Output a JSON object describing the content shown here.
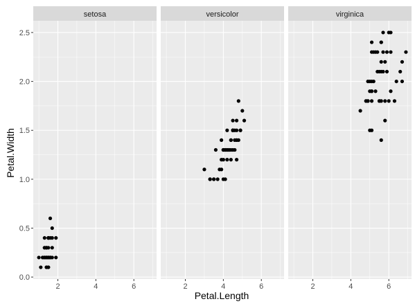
{
  "chart_data": {
    "type": "scatter",
    "facet_by": "Species",
    "xlabel": "Petal.Length",
    "ylabel": "Petal.Width",
    "xlim": [
      0.705,
      7.195
    ],
    "ylim": [
      -0.02,
      2.62
    ],
    "x_ticks": [
      2,
      4,
      6
    ],
    "y_ticks": [
      0.0,
      0.5,
      1.0,
      1.5,
      2.0,
      2.5
    ],
    "y_tick_labels": [
      "0.0",
      "0.5",
      "1.0",
      "1.5",
      "2.0",
      "2.5"
    ],
    "grid": true,
    "legend": "none",
    "colors": {
      "panel_background": "#ebebeb",
      "grid_major": "#ffffff",
      "strip_background": "#d9d9d9",
      "point": "#000000"
    },
    "panels": [
      {
        "label": "setosa",
        "points": [
          [
            1.4,
            0.2
          ],
          [
            1.4,
            0.2
          ],
          [
            1.3,
            0.2
          ],
          [
            1.5,
            0.2
          ],
          [
            1.4,
            0.2
          ],
          [
            1.7,
            0.4
          ],
          [
            1.4,
            0.3
          ],
          [
            1.5,
            0.2
          ],
          [
            1.4,
            0.2
          ],
          [
            1.5,
            0.1
          ],
          [
            1.5,
            0.2
          ],
          [
            1.6,
            0.2
          ],
          [
            1.4,
            0.1
          ],
          [
            1.1,
            0.1
          ],
          [
            1.2,
            0.2
          ],
          [
            1.5,
            0.4
          ],
          [
            1.3,
            0.4
          ],
          [
            1.4,
            0.3
          ],
          [
            1.7,
            0.3
          ],
          [
            1.5,
            0.3
          ],
          [
            1.7,
            0.2
          ],
          [
            1.5,
            0.4
          ],
          [
            1.0,
            0.2
          ],
          [
            1.7,
            0.5
          ],
          [
            1.9,
            0.2
          ],
          [
            1.6,
            0.2
          ],
          [
            1.6,
            0.4
          ],
          [
            1.5,
            0.2
          ],
          [
            1.4,
            0.2
          ],
          [
            1.6,
            0.2
          ],
          [
            1.6,
            0.2
          ],
          [
            1.5,
            0.4
          ],
          [
            1.5,
            0.1
          ],
          [
            1.4,
            0.2
          ],
          [
            1.5,
            0.2
          ],
          [
            1.2,
            0.2
          ],
          [
            1.3,
            0.2
          ],
          [
            1.4,
            0.1
          ],
          [
            1.3,
            0.2
          ],
          [
            1.5,
            0.2
          ],
          [
            1.3,
            0.3
          ],
          [
            1.3,
            0.3
          ],
          [
            1.3,
            0.2
          ],
          [
            1.6,
            0.6
          ],
          [
            1.9,
            0.4
          ],
          [
            1.4,
            0.3
          ],
          [
            1.6,
            0.2
          ],
          [
            1.4,
            0.2
          ],
          [
            1.5,
            0.2
          ],
          [
            1.4,
            0.2
          ]
        ]
      },
      {
        "label": "versicolor",
        "points": [
          [
            4.7,
            1.4
          ],
          [
            4.5,
            1.5
          ],
          [
            4.9,
            1.5
          ],
          [
            4.0,
            1.3
          ],
          [
            4.6,
            1.5
          ],
          [
            4.5,
            1.3
          ],
          [
            4.7,
            1.6
          ],
          [
            3.3,
            1.0
          ],
          [
            4.6,
            1.3
          ],
          [
            3.9,
            1.4
          ],
          [
            3.5,
            1.0
          ],
          [
            4.2,
            1.5
          ],
          [
            4.0,
            1.0
          ],
          [
            4.7,
            1.4
          ],
          [
            3.6,
            1.3
          ],
          [
            4.4,
            1.4
          ],
          [
            4.5,
            1.5
          ],
          [
            4.1,
            1.0
          ],
          [
            4.5,
            1.5
          ],
          [
            3.9,
            1.1
          ],
          [
            4.8,
            1.8
          ],
          [
            4.0,
            1.3
          ],
          [
            4.9,
            1.5
          ],
          [
            4.7,
            1.2
          ],
          [
            4.3,
            1.3
          ],
          [
            4.4,
            1.4
          ],
          [
            4.8,
            1.4
          ],
          [
            5.0,
            1.7
          ],
          [
            4.5,
            1.5
          ],
          [
            3.5,
            1.0
          ],
          [
            3.8,
            1.1
          ],
          [
            3.7,
            1.0
          ],
          [
            3.9,
            1.2
          ],
          [
            5.1,
            1.6
          ],
          [
            4.5,
            1.5
          ],
          [
            4.5,
            1.6
          ],
          [
            4.7,
            1.5
          ],
          [
            4.4,
            1.3
          ],
          [
            4.1,
            1.3
          ],
          [
            4.0,
            1.3
          ],
          [
            4.4,
            1.2
          ],
          [
            4.6,
            1.4
          ],
          [
            4.0,
            1.2
          ],
          [
            3.3,
            1.0
          ],
          [
            4.2,
            1.3
          ],
          [
            4.2,
            1.2
          ],
          [
            4.2,
            1.3
          ],
          [
            4.3,
            1.3
          ],
          [
            3.0,
            1.1
          ],
          [
            4.1,
            1.3
          ]
        ]
      },
      {
        "label": "virginica",
        "points": [
          [
            6.0,
            2.5
          ],
          [
            5.1,
            1.9
          ],
          [
            5.9,
            2.1
          ],
          [
            5.6,
            1.8
          ],
          [
            5.8,
            2.2
          ],
          [
            6.6,
            2.1
          ],
          [
            4.5,
            1.7
          ],
          [
            6.3,
            1.8
          ],
          [
            5.8,
            1.8
          ],
          [
            6.1,
            2.5
          ],
          [
            5.1,
            2.0
          ],
          [
            5.3,
            1.9
          ],
          [
            5.5,
            2.1
          ],
          [
            5.0,
            2.0
          ],
          [
            5.1,
            2.4
          ],
          [
            5.3,
            2.3
          ],
          [
            5.5,
            1.8
          ],
          [
            6.7,
            2.2
          ],
          [
            6.9,
            2.3
          ],
          [
            5.0,
            1.5
          ],
          [
            5.7,
            2.3
          ],
          [
            4.9,
            2.0
          ],
          [
            6.7,
            2.0
          ],
          [
            4.9,
            1.8
          ],
          [
            5.7,
            2.1
          ],
          [
            6.0,
            1.8
          ],
          [
            4.8,
            1.8
          ],
          [
            4.9,
            1.8
          ],
          [
            5.6,
            2.1
          ],
          [
            5.8,
            1.6
          ],
          [
            6.1,
            1.9
          ],
          [
            6.4,
            2.0
          ],
          [
            5.6,
            2.2
          ],
          [
            5.1,
            1.5
          ],
          [
            5.6,
            1.4
          ],
          [
            6.1,
            2.3
          ],
          [
            5.6,
            2.4
          ],
          [
            5.5,
            1.8
          ],
          [
            4.8,
            1.8
          ],
          [
            5.4,
            2.1
          ],
          [
            5.6,
            2.4
          ],
          [
            5.1,
            2.3
          ],
          [
            5.1,
            1.9
          ],
          [
            5.9,
            2.3
          ],
          [
            5.7,
            2.5
          ],
          [
            5.2,
            2.3
          ],
          [
            5.0,
            1.9
          ],
          [
            5.2,
            2.0
          ],
          [
            5.4,
            2.3
          ],
          [
            5.1,
            1.8
          ]
        ]
      }
    ]
  }
}
